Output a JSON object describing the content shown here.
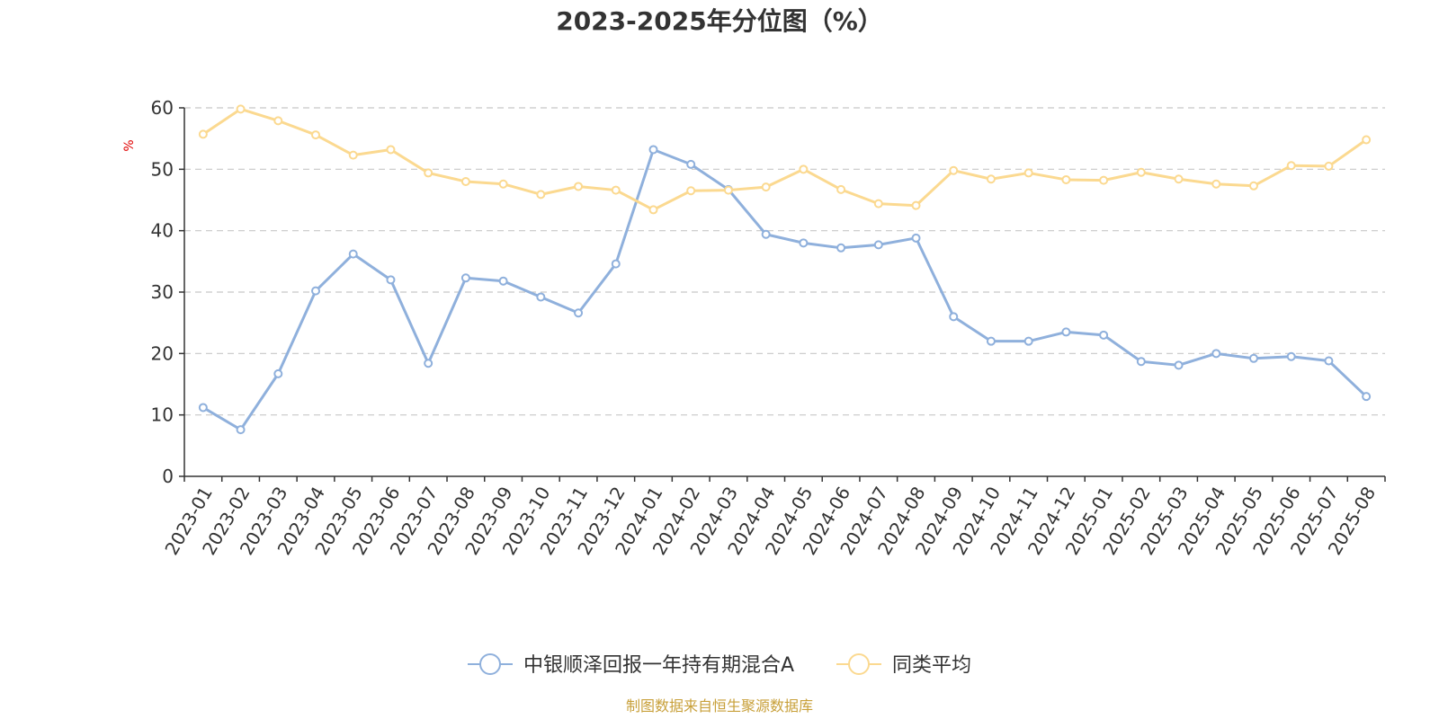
{
  "chart_data": {
    "type": "line",
    "title": "2023-2025年分位图（%）",
    "ylabel": "%",
    "xlabel": "",
    "ylim": [
      0,
      60
    ],
    "yticks": [
      0,
      10,
      20,
      30,
      40,
      50,
      60
    ],
    "grid": true,
    "legend_position": "bottom-center",
    "categories": [
      "2023-01",
      "2023-02",
      "2023-03",
      "2023-04",
      "2023-05",
      "2023-06",
      "2023-07",
      "2023-08",
      "2023-09",
      "2023-10",
      "2023-11",
      "2023-12",
      "2024-01",
      "2024-02",
      "2024-03",
      "2024-04",
      "2024-05",
      "2024-06",
      "2024-07",
      "2024-08",
      "2024-09",
      "2024-10",
      "2024-11",
      "2024-12",
      "2025-01",
      "2025-02",
      "2025-03",
      "2025-04",
      "2025-05",
      "2025-06",
      "2025-07",
      "2025-08"
    ],
    "series": [
      {
        "name": "中银顺泽回报一年持有期混合A",
        "color": "#8fb0dc",
        "values": [
          11.2,
          7.6,
          16.7,
          30.2,
          36.2,
          32.0,
          18.4,
          32.3,
          31.8,
          29.2,
          26.6,
          34.6,
          53.2,
          50.8,
          46.7,
          39.4,
          38.0,
          37.2,
          37.7,
          38.8,
          26.0,
          22.0,
          22.0,
          23.5,
          23.0,
          18.7,
          18.1,
          20.0,
          19.2,
          19.5,
          18.8,
          13.0
        ]
      },
      {
        "name": "同类平均",
        "color": "#fbd990",
        "values": [
          55.7,
          59.8,
          57.9,
          55.6,
          52.3,
          53.2,
          49.4,
          48.0,
          47.6,
          45.9,
          47.2,
          46.6,
          43.4,
          46.5,
          46.6,
          47.1,
          50.0,
          46.7,
          44.4,
          44.1,
          49.8,
          48.4,
          49.4,
          48.3,
          48.2,
          49.5,
          48.4,
          47.6,
          47.3,
          50.6,
          50.5,
          54.8
        ]
      }
    ],
    "source": "制图数据来自恒生聚源数据库"
  }
}
